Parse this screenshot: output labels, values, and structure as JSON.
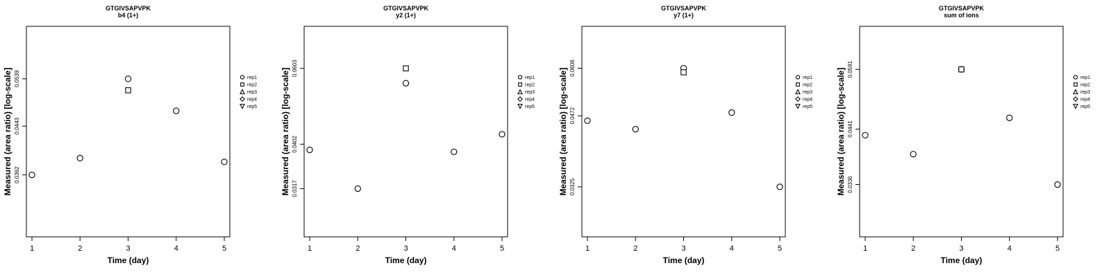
{
  "figure": {
    "background": "#ffffff",
    "axis_color": "#000000",
    "marker_fill": "#ffffff"
  },
  "chart_data": [
    {
      "type": "scatter",
      "title": "GTGIVSAPVPK",
      "subtitle": "b4 (1+)",
      "xlabel": "Time (day)",
      "ylabel": "Measured (area ratio) [log-scale]",
      "yscale": "log",
      "x_ticks": [
        1,
        2,
        3,
        4,
        5
      ],
      "y_ticks": [
        0.0362,
        0.0443,
        0.0539
      ],
      "ylim": [
        0.028,
        0.067
      ],
      "legend": [
        {
          "label": "rep1",
          "marker": "circle"
        },
        {
          "label": "rep2",
          "marker": "square"
        },
        {
          "label": "rep3",
          "marker": "triangle-up"
        },
        {
          "label": "rep4",
          "marker": "diamond"
        },
        {
          "label": "rep5",
          "marker": "triangle-down"
        }
      ],
      "series": [
        {
          "name": "rep1",
          "marker": "circle",
          "points": [
            [
              1,
              0.0362
            ],
            [
              2,
              0.0388
            ],
            [
              3,
              0.0539
            ],
            [
              4,
              0.0472
            ],
            [
              5,
              0.0382
            ]
          ]
        },
        {
          "name": "rep2",
          "marker": "square",
          "points": [
            [
              3,
              0.0514
            ]
          ]
        },
        {
          "name": "rep3",
          "marker": "triangle-up",
          "points": []
        },
        {
          "name": "rep4",
          "marker": "diamond",
          "points": []
        },
        {
          "name": "rep5",
          "marker": "triangle-down",
          "points": []
        }
      ]
    },
    {
      "type": "scatter",
      "title": "GTGIVSAPVPK",
      "subtitle": "y2 (1+)",
      "xlabel": "Time (day)",
      "ylabel": "Measured (area ratio) [log-scale]",
      "yscale": "log",
      "x_ticks": [
        1,
        2,
        3,
        4,
        5
      ],
      "y_ticks": [
        0.0317,
        0.0402,
        0.0603
      ],
      "ylim": [
        0.0245,
        0.0755
      ],
      "legend": [
        {
          "label": "rep1",
          "marker": "circle"
        },
        {
          "label": "rep2",
          "marker": "square"
        },
        {
          "label": "rep3",
          "marker": "triangle-up"
        },
        {
          "label": "rep4",
          "marker": "diamond"
        },
        {
          "label": "rep5",
          "marker": "triangle-down"
        }
      ],
      "series": [
        {
          "name": "rep1",
          "marker": "circle",
          "points": [
            [
              1,
              0.039
            ],
            [
              2,
              0.0317
            ],
            [
              3,
              0.0557
            ],
            [
              4,
              0.0386
            ],
            [
              5,
              0.0424
            ]
          ]
        },
        {
          "name": "rep2",
          "marker": "square",
          "points": [
            [
              3,
              0.0603
            ]
          ]
        },
        {
          "name": "rep3",
          "marker": "triangle-up",
          "points": []
        },
        {
          "name": "rep4",
          "marker": "diamond",
          "points": []
        },
        {
          "name": "rep5",
          "marker": "triangle-down",
          "points": []
        }
      ]
    },
    {
      "type": "scatter",
      "title": "GTGIVSAPVPK",
      "subtitle": "y7 (1+)",
      "xlabel": "Time (day)",
      "ylabel": "Measured (area ratio) [log-scale]",
      "yscale": "log",
      "x_ticks": [
        1,
        2,
        3,
        4,
        5
      ],
      "y_ticks": [
        0.0325,
        0.0472,
        0.0606
      ],
      "ylim": [
        0.025,
        0.0755
      ],
      "legend": [
        {
          "label": "rep1",
          "marker": "circle"
        },
        {
          "label": "rep2",
          "marker": "square"
        },
        {
          "label": "rep3",
          "marker": "triangle-up"
        },
        {
          "label": "rep4",
          "marker": "diamond"
        },
        {
          "label": "rep5",
          "marker": "triangle-down"
        }
      ],
      "series": [
        {
          "name": "rep1",
          "marker": "circle",
          "points": [
            [
              1,
              0.046
            ],
            [
              2,
              0.044
            ],
            [
              3,
              0.0606
            ],
            [
              4,
              0.048
            ],
            [
              5,
              0.0325
            ]
          ]
        },
        {
          "name": "rep2",
          "marker": "square",
          "points": [
            [
              3,
              0.0593
            ]
          ]
        },
        {
          "name": "rep3",
          "marker": "triangle-up",
          "points": []
        },
        {
          "name": "rep4",
          "marker": "diamond",
          "points": []
        },
        {
          "name": "rep5",
          "marker": "triangle-down",
          "points": []
        }
      ]
    },
    {
      "type": "scatter",
      "title": "GTGIVSAPVPK",
      "subtitle": "sum of ions",
      "xlabel": "Time (day)",
      "ylabel": "Measured (area ratio) [log-scale]",
      "yscale": "log",
      "x_ticks": [
        1,
        2,
        3,
        4,
        5
      ],
      "y_ticks": [
        0.0336,
        0.0441,
        0.0591
      ],
      "ylim": [
        0.026,
        0.073
      ],
      "legend": [
        {
          "label": "rep1",
          "marker": "circle"
        },
        {
          "label": "rep2",
          "marker": "square"
        },
        {
          "label": "rep3",
          "marker": "triangle-up"
        },
        {
          "label": "rep4",
          "marker": "diamond"
        },
        {
          "label": "rep5",
          "marker": "triangle-down"
        }
      ],
      "series": [
        {
          "name": "rep1",
          "marker": "circle",
          "points": [
            [
              1,
              0.0428
            ],
            [
              2,
              0.039
            ],
            [
              3,
              0.0591
            ],
            [
              4,
              0.0466
            ],
            [
              5,
              0.0336
            ]
          ]
        },
        {
          "name": "rep2",
          "marker": "square",
          "points": [
            [
              3,
              0.0591
            ]
          ]
        },
        {
          "name": "rep3",
          "marker": "triangle-up",
          "points": []
        },
        {
          "name": "rep4",
          "marker": "diamond",
          "points": []
        },
        {
          "name": "rep5",
          "marker": "triangle-down",
          "points": []
        }
      ]
    }
  ]
}
